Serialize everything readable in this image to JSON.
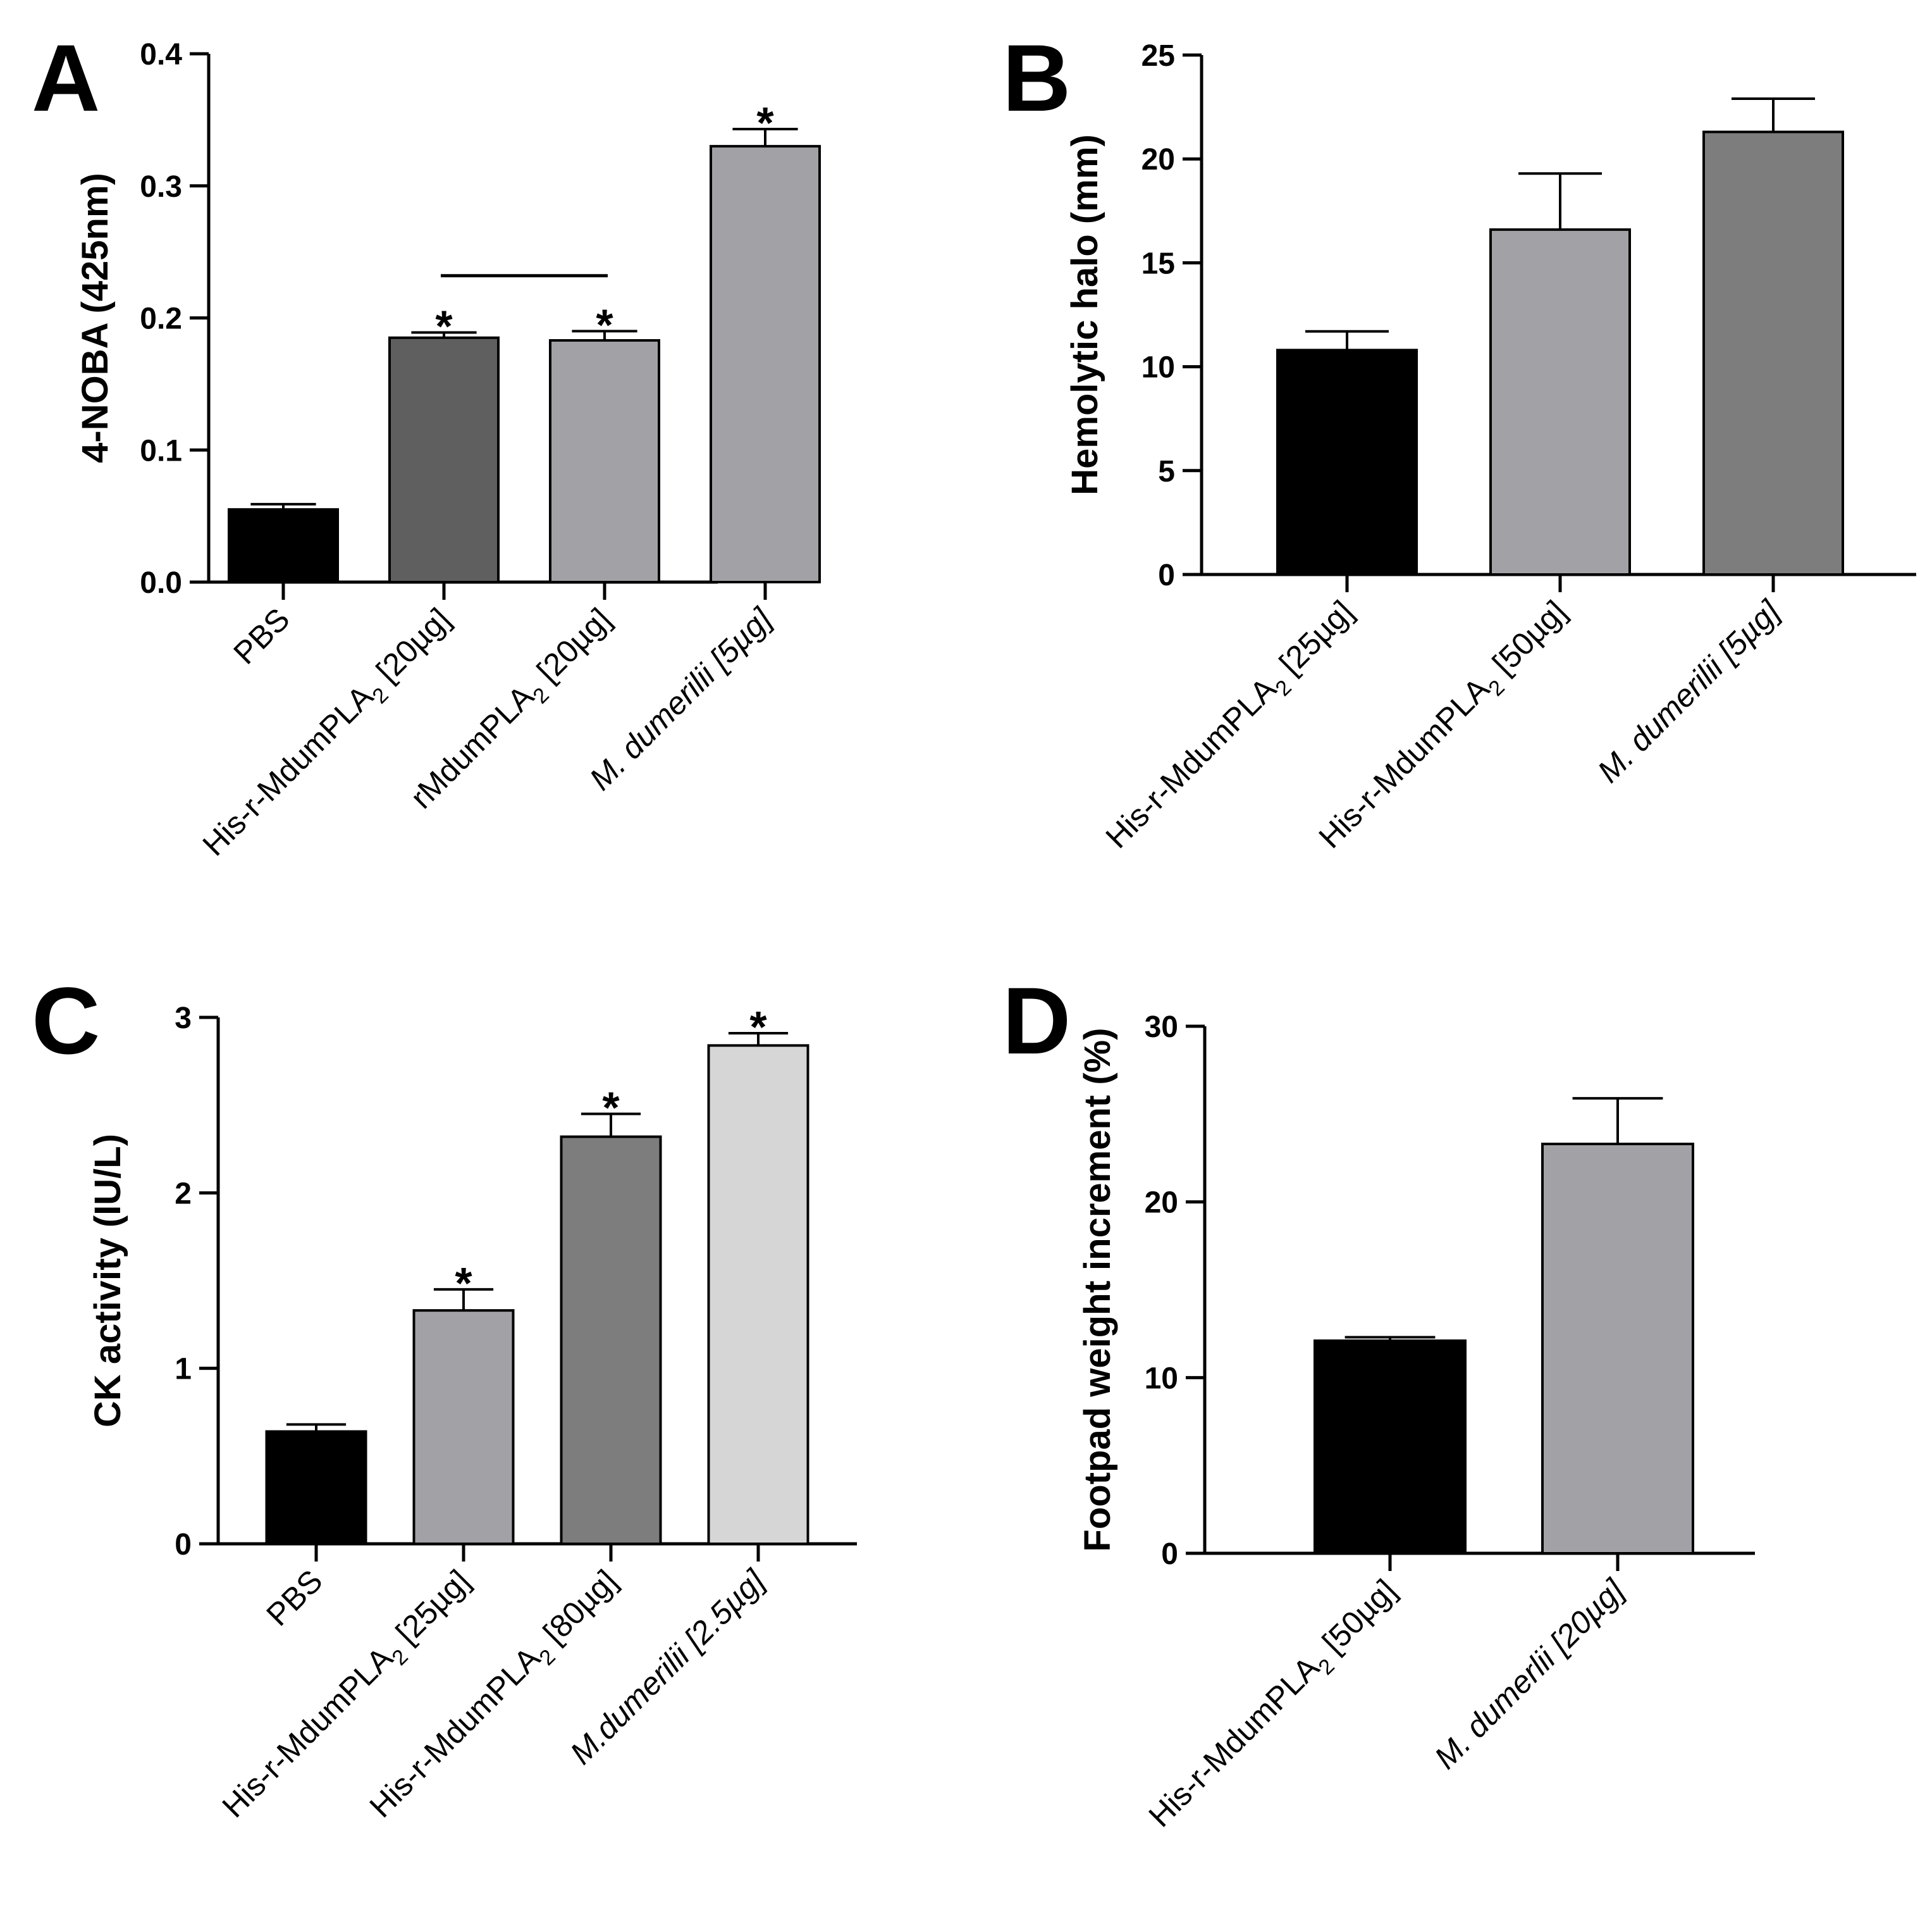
{
  "chart_data": [
    {
      "panel": "A",
      "type": "bar",
      "ylabel": "4-NOBA (425nm)",
      "ylim": [
        0,
        0.4
      ],
      "yticks": [
        "0.0",
        "0.1",
        "0.2",
        "0.3",
        "0.4"
      ],
      "ytick_values": [
        0,
        0.1,
        0.2,
        0.3,
        0.4
      ],
      "categories": [
        {
          "main": "PBS",
          "sub": "",
          "rest": "",
          "italic": false
        },
        {
          "main": "His-r-MdumPLA",
          "sub": "2",
          "rest": " [20µg]",
          "italic": false
        },
        {
          "main": "rMdumPLA",
          "sub": "2",
          "rest": " [20µg]",
          "italic": false
        },
        {
          "main": "M. dumerilii [5µg]",
          "sub": "",
          "rest": "",
          "italic": true
        }
      ],
      "values": [
        0.055,
        0.185,
        0.183,
        0.33
      ],
      "errors": [
        0.004,
        0.004,
        0.007,
        0.013
      ],
      "colors": [
        "#000000",
        "#5f5f5f",
        "#a2a1a6",
        "#a2a1a6"
      ],
      "significance": [
        "",
        "*",
        "*",
        "*"
      ],
      "bracket": [
        1,
        2
      ],
      "bracket_level": 0.232
    },
    {
      "panel": "B",
      "type": "bar",
      "ylabel": "Hemolytic halo (mm)",
      "ylim": [
        0,
        25
      ],
      "yticks": [
        "0",
        "5",
        "10",
        "15",
        "20",
        "25"
      ],
      "ytick_values": [
        0,
        5,
        10,
        15,
        20,
        25
      ],
      "categories": [
        {
          "main": "His-r-MdumPLA",
          "sub": "2",
          "rest": " [25µg]",
          "italic": false
        },
        {
          "main": "His-r-MdumPLA",
          "sub": "2",
          "rest": " [50µg]",
          "italic": false
        },
        {
          "main": "M. dumerilii [5µg]",
          "sub": "",
          "rest": "",
          "italic": true
        }
      ],
      "values": [
        10.8,
        16.6,
        21.3
      ],
      "errors": [
        0.9,
        2.7,
        1.6
      ],
      "colors": [
        "#000000",
        "#a2a1a6",
        "#7d7d7d"
      ],
      "significance": [
        "",
        "",
        ""
      ]
    },
    {
      "panel": "C",
      "type": "bar",
      "ylabel": "CK activity (IU/L)",
      "ylim": [
        0,
        3
      ],
      "yticks": [
        "0",
        "1",
        "2",
        "3"
      ],
      "ytick_values": [
        0,
        1,
        2,
        3
      ],
      "categories": [
        {
          "main": "PBS",
          "sub": "",
          "rest": "",
          "italic": false
        },
        {
          "main": "His-r-MdumPLA",
          "sub": "2",
          "rest": " [25µg]",
          "italic": false
        },
        {
          "main": "His-r-MdumPLA",
          "sub": "2",
          "rest": " [80µg]",
          "italic": false
        },
        {
          "main": "M.dumerilii [2.5µg]",
          "sub": "",
          "rest": "",
          "italic": true
        }
      ],
      "values": [
        0.64,
        1.33,
        2.32,
        2.84
      ],
      "errors": [
        0.04,
        0.12,
        0.13,
        0.07
      ],
      "colors": [
        "#000000",
        "#a2a1a6",
        "#7d7d7d",
        "#d6d6d6"
      ],
      "significance": [
        "",
        "*",
        "*",
        "*"
      ]
    },
    {
      "panel": "D",
      "type": "bar",
      "ylabel": "Footpad weight increment (%)",
      "ylim": [
        0,
        30
      ],
      "yticks": [
        "0",
        "10",
        "20",
        "30"
      ],
      "ytick_values": [
        0,
        10,
        20,
        30
      ],
      "categories": [
        {
          "main": "His-r-MdumPLA",
          "sub": "2",
          "rest": " [50µg]",
          "italic": false
        },
        {
          "main": "M. dumerlii [20µg]",
          "sub": "",
          "rest": "",
          "italic": true
        }
      ],
      "values": [
        12.1,
        23.3
      ],
      "errors": [
        0.2,
        2.6
      ],
      "colors": [
        "#000000",
        "#a2a1a6"
      ],
      "significance": [
        "",
        ""
      ]
    }
  ]
}
